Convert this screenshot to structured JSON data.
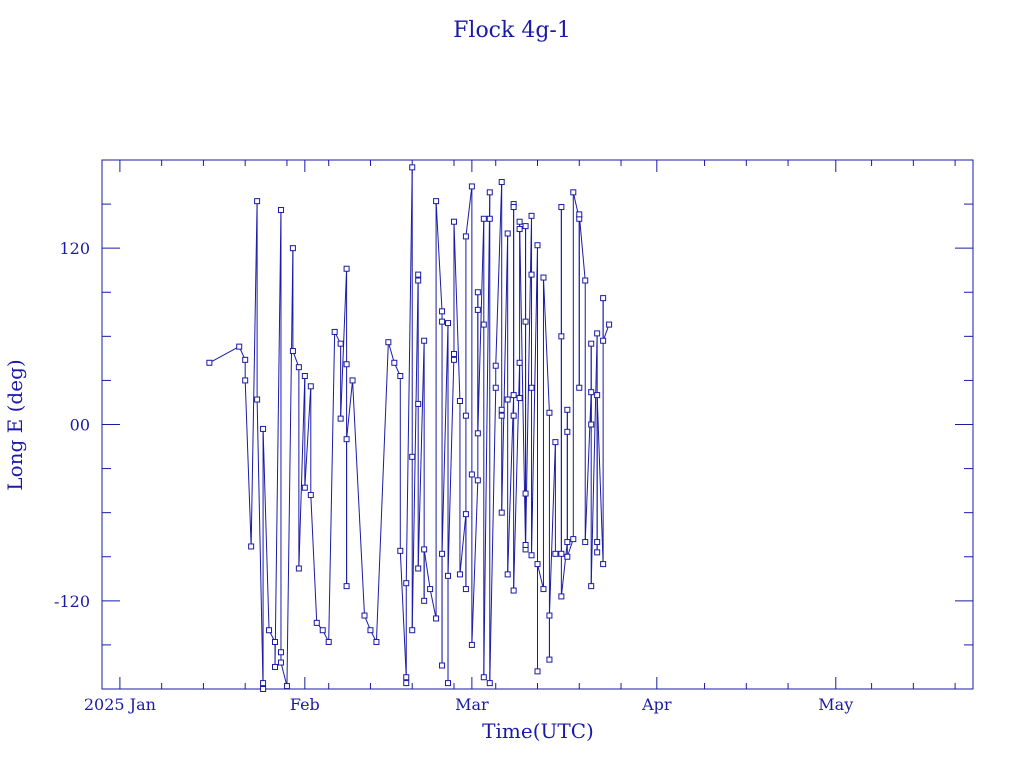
{
  "chart_data": {
    "type": "scatter",
    "title": "Flock 4g-1",
    "xlabel": "Time(UTC)",
    "ylabel": "Long E (deg)",
    "x_ticks": [
      {
        "label": "2025 Jan",
        "date": "2025-01-01"
      },
      {
        "label": "Feb",
        "date": "2025-02-01"
      },
      {
        "label": "Mar",
        "date": "2025-03-01"
      },
      {
        "label": "Apr",
        "date": "2025-04-01"
      },
      {
        "label": "May",
        "date": "2025-05-01"
      }
    ],
    "y_ticks": [
      {
        "label": "120",
        "value": 120
      },
      {
        "label": "00",
        "value": 0
      },
      {
        "label": "-120",
        "value": -120
      }
    ],
    "xlim": [
      "2024-12-29",
      "2025-05-24"
    ],
    "ylim": [
      -180,
      180
    ],
    "grid": false,
    "series": [
      {
        "values": [
          [
            "2025-01-16",
            42
          ],
          [
            "2025-01-21",
            53
          ],
          [
            "2025-01-22",
            44
          ],
          [
            "2025-01-22",
            30
          ],
          [
            "2025-01-23",
            -83
          ],
          [
            "2025-01-24",
            152
          ],
          [
            "2025-01-24",
            17
          ],
          [
            "2025-01-25",
            -180
          ],
          [
            "2025-01-25",
            -176
          ],
          [
            "2025-01-25",
            -3
          ],
          [
            "2025-01-26",
            -140
          ],
          [
            "2025-01-27",
            -148
          ],
          [
            "2025-01-27",
            -165
          ],
          [
            "2025-01-28",
            146
          ],
          [
            "2025-01-28",
            -155
          ],
          [
            "2025-01-28",
            -162
          ],
          [
            "2025-01-29",
            -178
          ],
          [
            "2025-01-30",
            120
          ],
          [
            "2025-01-30",
            50
          ],
          [
            "2025-01-31",
            39
          ],
          [
            "2025-01-31",
            -98
          ],
          [
            "2025-02-01",
            33
          ],
          [
            "2025-02-01",
            -43
          ],
          [
            "2025-02-02",
            26
          ],
          [
            "2025-02-02",
            -48
          ],
          [
            "2025-02-03",
            -135
          ],
          [
            "2025-02-04",
            -140
          ],
          [
            "2025-02-05",
            -148
          ],
          [
            "2025-02-06",
            63
          ],
          [
            "2025-02-07",
            55
          ],
          [
            "2025-02-07",
            4
          ],
          [
            "2025-02-08",
            106
          ],
          [
            "2025-02-08",
            41
          ],
          [
            "2025-02-08",
            -110
          ],
          [
            "2025-02-08",
            -10
          ],
          [
            "2025-02-09",
            30
          ],
          [
            "2025-02-11",
            -130
          ],
          [
            "2025-02-12",
            -140
          ],
          [
            "2025-02-13",
            -148
          ],
          [
            "2025-02-15",
            56
          ],
          [
            "2025-02-16",
            42
          ],
          [
            "2025-02-17",
            33
          ],
          [
            "2025-02-17",
            -86
          ],
          [
            "2025-02-18",
            -172
          ],
          [
            "2025-02-18",
            -176
          ],
          [
            "2025-02-18",
            -108
          ],
          [
            "2025-02-19",
            175
          ],
          [
            "2025-02-19",
            -22
          ],
          [
            "2025-02-19",
            -140
          ],
          [
            "2025-02-20",
            102
          ],
          [
            "2025-02-20",
            98
          ],
          [
            "2025-02-20",
            14
          ],
          [
            "2025-02-20",
            -98
          ],
          [
            "2025-02-21",
            57
          ],
          [
            "2025-02-21",
            -120
          ],
          [
            "2025-02-21",
            -85
          ],
          [
            "2025-02-22",
            -112
          ],
          [
            "2025-02-23",
            -132
          ],
          [
            "2025-02-23",
            152
          ],
          [
            "2025-02-24",
            77
          ],
          [
            "2025-02-24",
            70
          ],
          [
            "2025-02-24",
            -164
          ],
          [
            "2025-02-24",
            -88
          ],
          [
            "2025-02-25",
            69
          ],
          [
            "2025-02-25",
            -176
          ],
          [
            "2025-02-25",
            -103
          ],
          [
            "2025-02-26",
            48
          ],
          [
            "2025-02-26",
            44
          ],
          [
            "2025-02-26",
            138
          ],
          [
            "2025-02-27",
            16
          ],
          [
            "2025-02-27",
            -102
          ],
          [
            "2025-02-28",
            -61
          ],
          [
            "2025-02-28",
            -112
          ],
          [
            "2025-02-28",
            6
          ],
          [
            "2025-02-28",
            128
          ],
          [
            "2025-03-01",
            162
          ],
          [
            "2025-03-01",
            -34
          ],
          [
            "2025-03-01",
            -150
          ],
          [
            "2025-03-02",
            -38
          ],
          [
            "2025-03-02",
            90
          ],
          [
            "2025-03-02",
            78
          ],
          [
            "2025-03-02",
            -6
          ],
          [
            "2025-03-03",
            140
          ],
          [
            "2025-03-03",
            68
          ],
          [
            "2025-03-03",
            -172
          ],
          [
            "2025-03-04",
            158
          ],
          [
            "2025-03-04",
            140
          ],
          [
            "2025-03-04",
            -176
          ],
          [
            "2025-03-05",
            25
          ],
          [
            "2025-03-05",
            40
          ],
          [
            "2025-03-06",
            165
          ],
          [
            "2025-03-06",
            10
          ],
          [
            "2025-03-06",
            6
          ],
          [
            "2025-03-06",
            -60
          ],
          [
            "2025-03-07",
            130
          ],
          [
            "2025-03-07",
            17
          ],
          [
            "2025-03-07",
            -102
          ],
          [
            "2025-03-08",
            20
          ],
          [
            "2025-03-08",
            150
          ],
          [
            "2025-03-08",
            148
          ],
          [
            "2025-03-08",
            6
          ],
          [
            "2025-03-08",
            -113
          ],
          [
            "2025-03-09",
            42
          ],
          [
            "2025-03-09",
            18
          ],
          [
            "2025-03-09",
            133
          ],
          [
            "2025-03-09",
            138
          ],
          [
            "2025-03-10",
            -85
          ],
          [
            "2025-03-10",
            70
          ],
          [
            "2025-03-10",
            135
          ],
          [
            "2025-03-10",
            -47
          ],
          [
            "2025-03-10",
            -82
          ],
          [
            "2025-03-11",
            142
          ],
          [
            "2025-03-11",
            102
          ],
          [
            "2025-03-11",
            25
          ],
          [
            "2025-03-11",
            -89
          ],
          [
            "2025-03-12",
            122
          ],
          [
            "2025-03-12",
            -168
          ],
          [
            "2025-03-12",
            -95
          ],
          [
            "2025-03-13",
            -112
          ],
          [
            "2025-03-13",
            100
          ],
          [
            "2025-03-14",
            8
          ],
          [
            "2025-03-14",
            -160
          ],
          [
            "2025-03-14",
            -130
          ],
          [
            "2025-03-15",
            -12
          ],
          [
            "2025-03-15",
            -88
          ],
          [
            "2025-03-16",
            -88
          ],
          [
            "2025-03-16",
            60
          ],
          [
            "2025-03-16",
            148
          ],
          [
            "2025-03-16",
            -117
          ],
          [
            "2025-03-17",
            -80
          ],
          [
            "2025-03-17",
            10
          ],
          [
            "2025-03-17",
            -5
          ],
          [
            "2025-03-17",
            -90
          ],
          [
            "2025-03-18",
            -78
          ],
          [
            "2025-03-18",
            158
          ],
          [
            "2025-03-19",
            140
          ],
          [
            "2025-03-19",
            25
          ],
          [
            "2025-03-19",
            143
          ],
          [
            "2025-03-20",
            98
          ],
          [
            "2025-03-20",
            -80
          ],
          [
            "2025-03-21",
            22
          ],
          [
            "2025-03-21",
            0
          ],
          [
            "2025-03-21",
            55
          ],
          [
            "2025-03-21",
            -110
          ],
          [
            "2025-03-22",
            62
          ],
          [
            "2025-03-22",
            -80
          ],
          [
            "2025-03-22",
            -87
          ],
          [
            "2025-03-22",
            20
          ],
          [
            "2025-03-23",
            -95
          ],
          [
            "2025-03-23",
            86
          ],
          [
            "2025-03-23",
            57
          ],
          [
            "2025-03-24",
            68
          ]
        ]
      }
    ]
  }
}
